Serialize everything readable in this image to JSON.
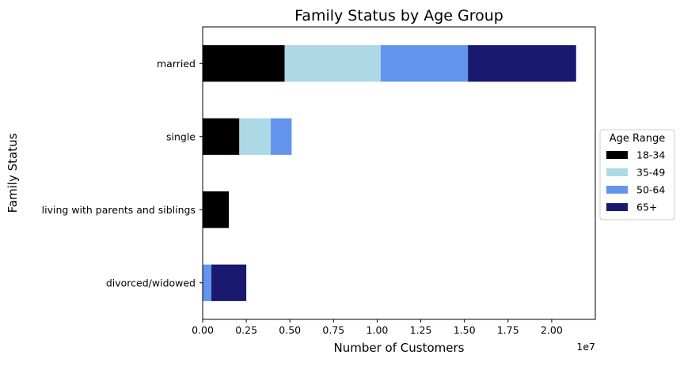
{
  "chart_data": {
    "type": "bar",
    "orientation": "horizontal",
    "stacked": true,
    "title": "Family Status by Age Group",
    "xlabel": "Number of Customers",
    "ylabel": "Family Status",
    "x_offset_label": "1e7",
    "xlim": [
      0,
      22500000
    ],
    "x_ticks": [
      0,
      2500000,
      5000000,
      7500000,
      10000000,
      12500000,
      15000000,
      17500000,
      20000000
    ],
    "x_tick_labels": [
      "0.00",
      "0.25",
      "0.50",
      "0.75",
      "1.00",
      "1.25",
      "1.50",
      "1.75",
      "2.00"
    ],
    "categories": [
      "married",
      "single",
      "living with parents and siblings",
      "divorced/widowed"
    ],
    "legend": {
      "title": "Age Range",
      "placement": "center-right outside"
    },
    "grid": false,
    "series": [
      {
        "name": "18-34",
        "color": "#000000",
        "values": [
          4700000,
          2100000,
          1500000,
          0
        ]
      },
      {
        "name": "35-49",
        "color": "#add8e6",
        "values": [
          5500000,
          1800000,
          0,
          0
        ]
      },
      {
        "name": "50-64",
        "color": "#6495ed",
        "values": [
          5000000,
          1200000,
          0,
          500000
        ]
      },
      {
        "name": "65+",
        "color": "#191970",
        "values": [
          6200000,
          0,
          0,
          2000000
        ]
      }
    ]
  }
}
